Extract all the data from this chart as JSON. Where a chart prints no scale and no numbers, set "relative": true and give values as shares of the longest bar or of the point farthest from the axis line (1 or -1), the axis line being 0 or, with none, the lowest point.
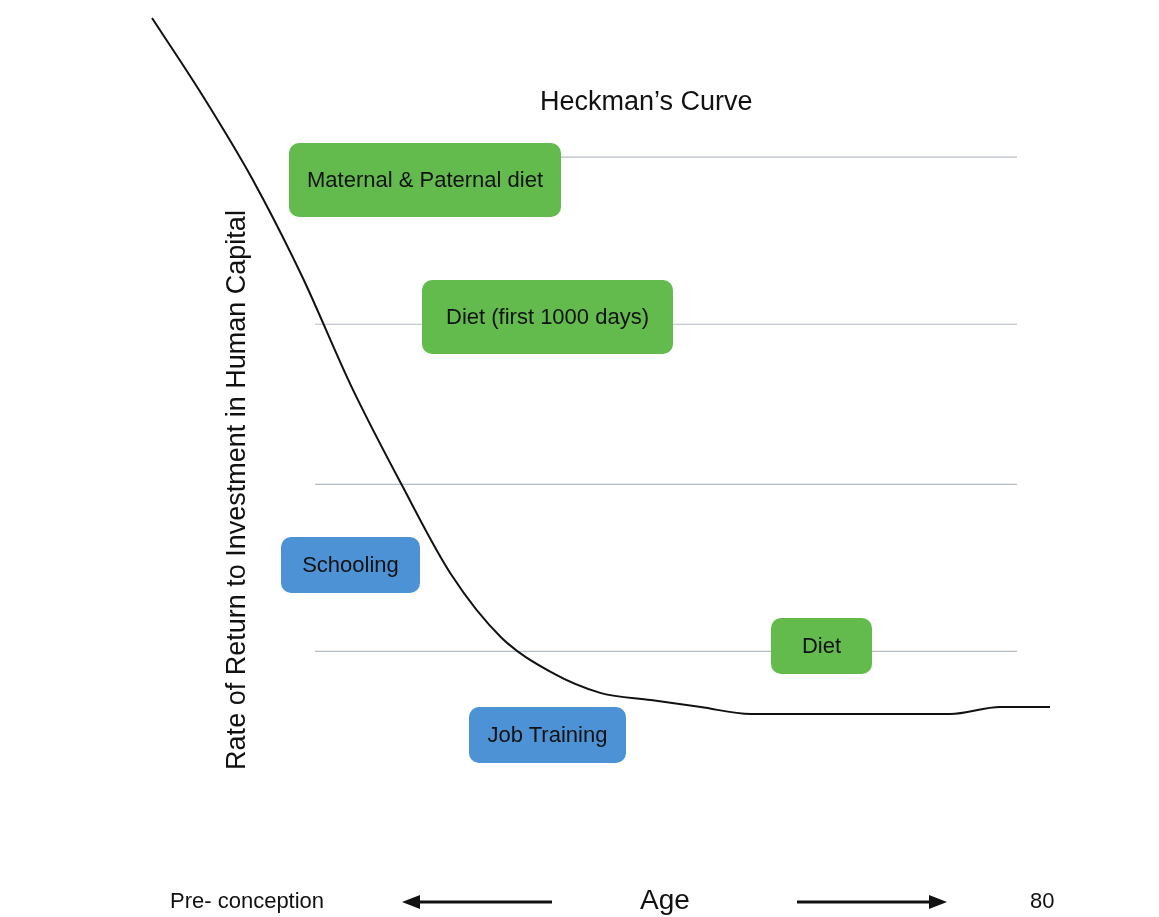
{
  "chart_data": {
    "type": "line",
    "title": "Heckman’s Curve",
    "ylabel": "Rate of Return to Investment in Human Capital",
    "relative": true,
    "legend": false,
    "marker": "none",
    "line_style": "solid",
    "categories": [
      null,
      null,
      null,
      null,
      null,
      null,
      null,
      null,
      null,
      null,
      null,
      null,
      null,
      null,
      null,
      null,
      null,
      null,
      null
    ],
    "series": [
      {
        "color": "#111111",
        "values": [
          1.0,
          0.89,
          0.77,
          0.63,
          0.47,
          0.33,
          0.2,
          0.11,
          0.06,
          0.03,
          0.02,
          0.01,
          0.0,
          0.0,
          0.0,
          0.0,
          0.0,
          0.01,
          0.01
        ]
      }
    ],
    "ref_lines": [
      {
        "axis": "y",
        "value": 0.8,
        "color": "#b4bcc4"
      },
      {
        "axis": "y",
        "value": 0.56,
        "color": "#b4bcc4"
      },
      {
        "axis": "y",
        "value": 0.33,
        "color": "#b4bcc4"
      },
      {
        "axis": "y",
        "value": 0.09,
        "color": "#b4bcc4"
      }
    ],
    "annotations": [
      "Maternal & Paternal diet",
      "Diet (first 1000 days)",
      "Schooling",
      "Diet",
      "Job Training",
      "Pre- conception",
      "80",
      "Age"
    ]
  }
}
